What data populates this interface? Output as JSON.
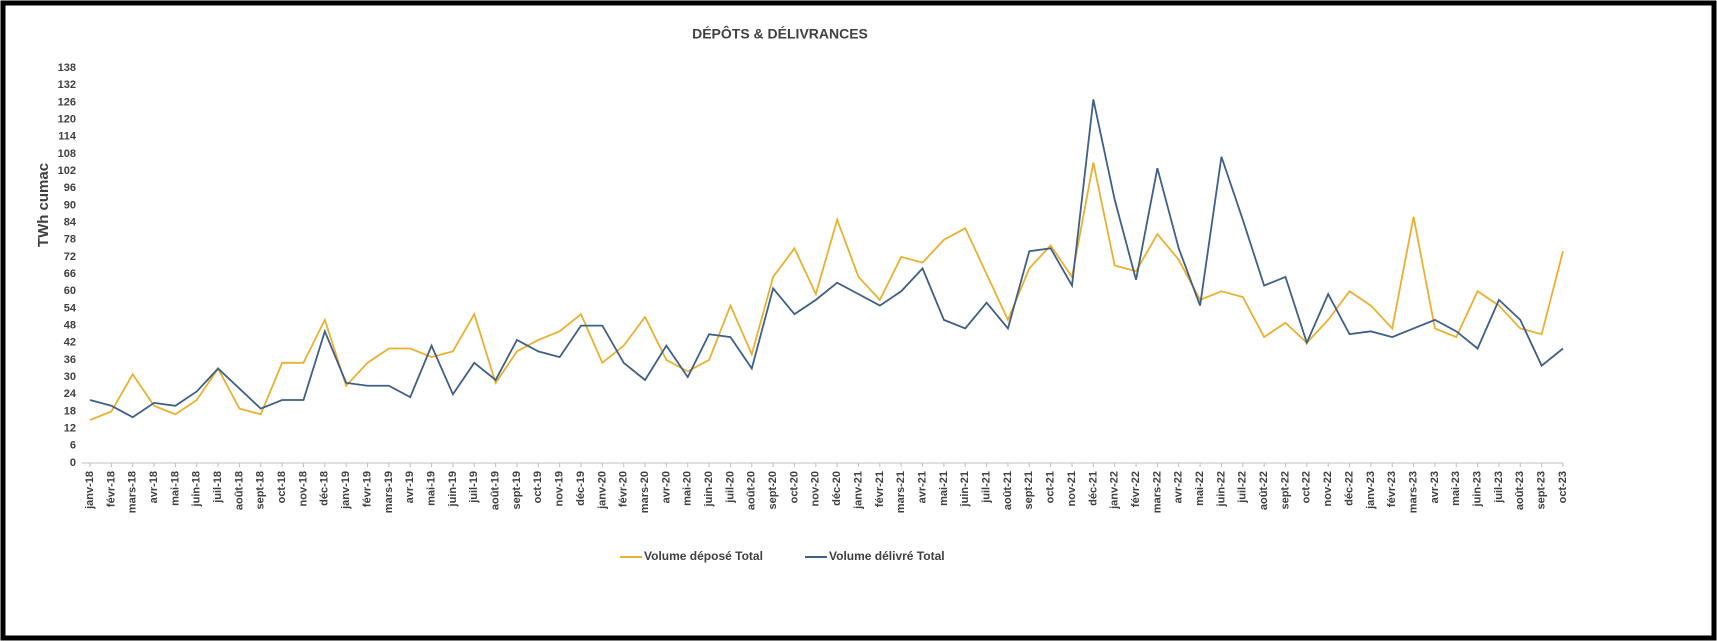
{
  "chart_data": {
    "type": "line",
    "title": "DÉPÔTS & DÉLIVRANCES",
    "y_label": "TWh cumac",
    "categories": [
      "janv-18",
      "févr-18",
      "mars-18",
      "avr-18",
      "mai-18",
      "juin-18",
      "juil-18",
      "août-18",
      "sept-18",
      "oct-18",
      "nov-18",
      "déc-18",
      "janv-19",
      "févr-19",
      "mars-19",
      "avr-19",
      "mai-19",
      "juin-19",
      "juil-19",
      "août-19",
      "sept-19",
      "oct-19",
      "nov-19",
      "déc-19",
      "janv-20",
      "févr-20",
      "mars-20",
      "avr-20",
      "mai-20",
      "juin-20",
      "juil-20",
      "août-20",
      "sept-20",
      "oct-20",
      "nov-20",
      "déc-20",
      "janv-21",
      "févr-21",
      "mars-21",
      "avr-21",
      "mai-21",
      "juin-21",
      "juil-21",
      "août-21",
      "sept-21",
      "oct-21",
      "nov-21",
      "déc-21",
      "janv-22",
      "févr-22",
      "mars-22",
      "avr-22",
      "mai-22",
      "juin-22",
      "juil-22",
      "août-22",
      "sept-22",
      "oct-22",
      "nov-22",
      "déc-22",
      "janv-23",
      "févr-23",
      "mars-23",
      "avr-23",
      "mai-23",
      "juin-23",
      "juil-23",
      "août-23",
      "sept-23",
      "oct-23"
    ],
    "series": [
      {
        "name": "Volume déposé Total",
        "color": "#e8b130",
        "values": [
          15,
          18,
          31,
          20,
          17,
          22,
          33,
          19,
          17,
          35,
          35,
          50,
          27,
          35,
          40,
          40,
          37,
          39,
          52,
          28,
          39,
          43,
          46,
          52,
          35,
          41,
          51,
          36,
          32,
          36,
          55,
          38,
          65,
          75,
          59,
          85,
          65,
          57,
          72,
          70,
          78,
          82,
          66,
          50,
          68,
          76,
          65,
          105,
          69,
          67,
          80,
          71,
          57,
          60,
          58,
          44,
          49,
          42,
          50,
          60,
          55,
          47,
          86,
          47,
          44,
          60,
          55,
          47,
          45,
          74
        ]
      },
      {
        "name": "Volume délivré Total",
        "color": "#3f5f86",
        "values": [
          22,
          20,
          16,
          21,
          20,
          25,
          33,
          26,
          19,
          22,
          22,
          46,
          28,
          27,
          27,
          23,
          41,
          24,
          35,
          29,
          43,
          39,
          37,
          48,
          48,
          35,
          29,
          41,
          30,
          45,
          44,
          33,
          61,
          52,
          57,
          63,
          59,
          55,
          60,
          68,
          50,
          47,
          56,
          47,
          74,
          75,
          62,
          127,
          92,
          64,
          103,
          75,
          55,
          107,
          85,
          62,
          65,
          42,
          59,
          45,
          46,
          44,
          47,
          50,
          46,
          40,
          57,
          50,
          34,
          40
        ]
      }
    ],
    "ylim": [
      0,
      138
    ],
    "yticks": [
      0,
      6,
      12,
      18,
      24,
      30,
      36,
      42,
      48,
      54,
      60,
      66,
      72,
      78,
      84,
      90,
      96,
      102,
      108,
      114,
      120,
      126,
      132,
      138
    ],
    "grid": false,
    "legend": "bottom"
  }
}
